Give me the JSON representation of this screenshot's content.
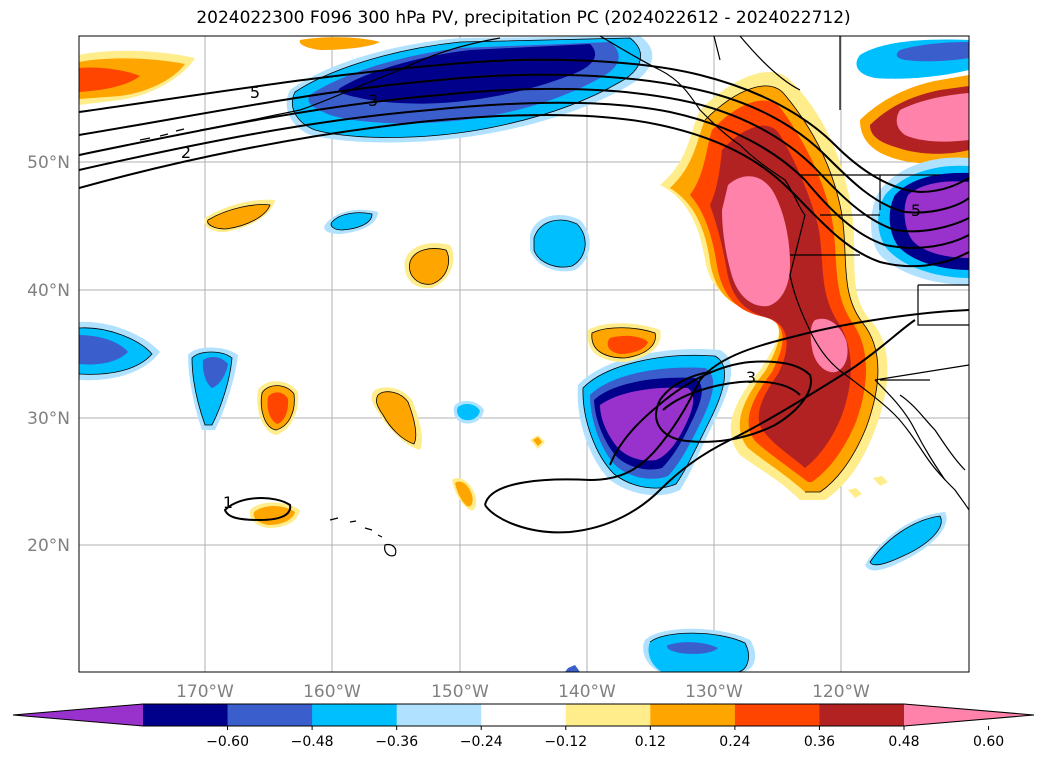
{
  "title": "2024022300 F096 300 hPa PV, precipitation PC (2024022612 - 2024022712)",
  "lat_labels": [
    "50°N",
    "40°N",
    "30°N",
    "20°N"
  ],
  "lon_labels": [
    "170°W",
    "160°W",
    "150°W",
    "140°W",
    "130°W",
    "120°W"
  ],
  "colorbar": {
    "ticks": [
      "−0.60",
      "−0.48",
      "−0.36",
      "−0.24",
      "−0.12",
      "0.12",
      "0.24",
      "0.36",
      "0.48",
      "0.60"
    ],
    "colors": [
      "#9932cc",
      "#00008b",
      "#3a5fcd",
      "#00bfff",
      "#b0e2ff",
      "#ffffff",
      "#ffec8b",
      "#ffa500",
      "#ff4500",
      "#b22222",
      "#ff82ab"
    ]
  },
  "pv_contour_labels": [
    "5",
    "3",
    "2",
    "3",
    "1",
    "5"
  ],
  "colors": {
    "grid": "#b0b0b0",
    "coast": "#000000"
  }
}
